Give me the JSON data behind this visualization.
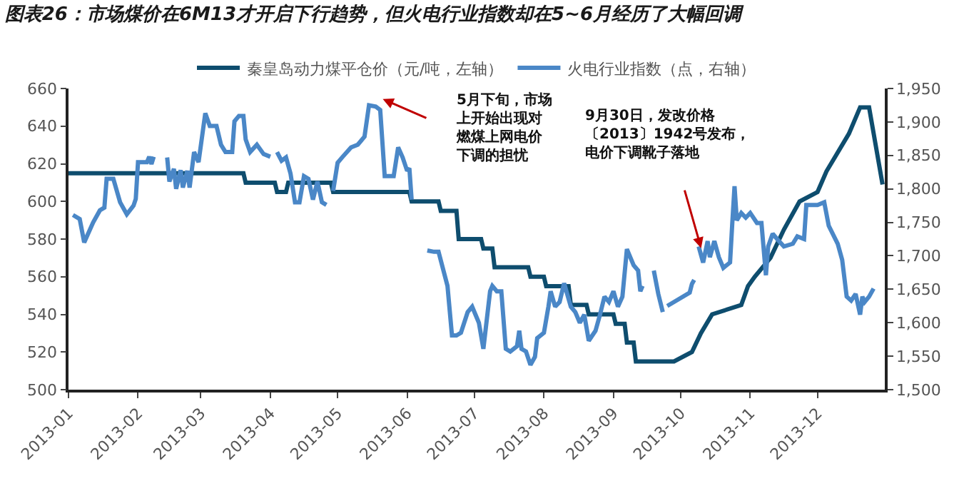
{
  "chart_data": {
    "type": "line",
    "title": "图表26：市场煤价在6M13才开启下行趋势，但火电行业指数却在5~6月经历了大幅回调",
    "legend": "top",
    "xlim": [
      "2013-01-01",
      "2013-12-31"
    ],
    "xticks": [
      {
        "value": "2013-01-01",
        "label": "2013-01"
      },
      {
        "value": "2013-02-01",
        "label": "2013-02"
      },
      {
        "value": "2013-03-01",
        "label": "2013-03"
      },
      {
        "value": "2013-04-01",
        "label": "2013-04"
      },
      {
        "value": "2013-05-01",
        "label": "2013-05"
      },
      {
        "value": "2013-06-01",
        "label": "2013-06"
      },
      {
        "value": "2013-07-01",
        "label": "2013-07"
      },
      {
        "value": "2013-08-01",
        "label": "2013-08"
      },
      {
        "value": "2013-09-01",
        "label": "2013-09"
      },
      {
        "value": "2013-10-01",
        "label": "2013-10"
      },
      {
        "value": "2013-11-01",
        "label": "2013-11"
      },
      {
        "value": "2013-12-01",
        "label": "2013-12"
      }
    ],
    "ylim": [
      500,
      660
    ],
    "yticks": [
      500,
      520,
      540,
      560,
      580,
      600,
      620,
      640,
      660
    ],
    "y2lim": [
      1500,
      1950
    ],
    "y2ticks": [
      {
        "value": 1500,
        "label": "1,500"
      },
      {
        "value": 1550,
        "label": "1,550"
      },
      {
        "value": 1600,
        "label": "1,600"
      },
      {
        "value": 1650,
        "label": "1,650"
      },
      {
        "value": 1700,
        "label": "1,700"
      },
      {
        "value": 1750,
        "label": "1,750"
      },
      {
        "value": 1800,
        "label": "1,800"
      },
      {
        "value": 1850,
        "label": "1,850"
      },
      {
        "value": 1900,
        "label": "1,900"
      },
      {
        "value": 1950,
        "label": "1,950"
      }
    ],
    "series": [
      {
        "name": "秦皇岛动力煤平仓价（元/吨，左轴）",
        "color": "#0e4d6e",
        "x": [
          "2013-01-01",
          "2013-03-20",
          "2013-03-21",
          "2013-04-03",
          "2013-04-04",
          "2013-04-08",
          "2013-04-09",
          "2013-04-28",
          "2013-04-29",
          "2013-06-02",
          "2013-06-03",
          "2013-06-15",
          "2013-06-16",
          "2013-06-23",
          "2013-06-24",
          "2013-07-04",
          "2013-07-05",
          "2013-07-09",
          "2013-07-10",
          "2013-07-25",
          "2013-07-26",
          "2013-08-01",
          "2013-08-02",
          "2013-08-12",
          "2013-08-13",
          "2013-08-20",
          "2013-08-21",
          "2013-09-01",
          "2013-09-02",
          "2013-09-06",
          "2013-09-07",
          "2013-09-10",
          "2013-09-11",
          "2013-09-28",
          "2013-10-06",
          "2013-10-10",
          "2013-10-15",
          "2013-10-28",
          "2013-10-31",
          "2013-11-03",
          "2013-11-10",
          "2013-11-16",
          "2013-11-23",
          "2013-12-01",
          "2013-12-05",
          "2013-12-09",
          "2013-12-15",
          "2013-12-20",
          "2013-12-24",
          "2013-12-30"
        ],
        "values": [
          615,
          615,
          610,
          610,
          605,
          605,
          610,
          610,
          605,
          605,
          600,
          600,
          595,
          595,
          580,
          580,
          575,
          575,
          565,
          565,
          560,
          560,
          555,
          555,
          545,
          545,
          540,
          540,
          535,
          535,
          525,
          525,
          515,
          515,
          520,
          530,
          540,
          545,
          555,
          560,
          570,
          585,
          600,
          605,
          616,
          624,
          636,
          650,
          650,
          609
        ]
      },
      {
        "name": "火电行业指数（点，右轴）",
        "color": "#4a87c7",
        "axis": "y2",
        "x": [
          "2013-01-03",
          "2013-01-06",
          "2013-01-08",
          "2013-01-12",
          "2013-01-15",
          "2013-01-17",
          "2013-01-18",
          "2013-01-21",
          "2013-01-24",
          "2013-01-27",
          "2013-01-30",
          "2013-01-31",
          "2013-02-01",
          "2013-02-05",
          "2013-02-06",
          "2013-02-07",
          "2013-02-08",
          "2013-02-11",
          "2013-02-14",
          "2013-02-15",
          "2013-02-17",
          "2013-02-18",
          "2013-02-20",
          "2013-02-21",
          "2013-02-23",
          "2013-02-24",
          "2013-02-26",
          "2013-02-28",
          "2013-03-03",
          "2013-03-05",
          "2013-03-08",
          "2013-03-10",
          "2013-03-12",
          "2013-03-15",
          "2013-03-16",
          "2013-03-18",
          "2013-03-20",
          "2013-03-21",
          "2013-03-23",
          "2013-03-26",
          "2013-03-29",
          "2013-04-01",
          "2013-04-02",
          "2013-04-04",
          "2013-04-06",
          "2013-04-08",
          "2013-04-10",
          "2013-04-12",
          "2013-04-14",
          "2013-04-16",
          "2013-04-18",
          "2013-04-20",
          "2013-04-22",
          "2013-04-24",
          "2013-04-26",
          "2013-04-28",
          "2013-04-29",
          "2013-05-01",
          "2013-05-03",
          "2013-05-07",
          "2013-05-10",
          "2013-05-13",
          "2013-05-15",
          "2013-05-18",
          "2013-05-20",
          "2013-05-22",
          "2013-05-26",
          "2013-05-28",
          "2013-05-30",
          "2013-06-01",
          "2013-06-02",
          "2013-06-03",
          "2013-06-06",
          "2013-06-10",
          "2013-06-13",
          "2013-06-15",
          "2013-06-19",
          "2013-06-21",
          "2013-06-23",
          "2013-06-25",
          "2013-06-28",
          "2013-06-30",
          "2013-07-02",
          "2013-07-03",
          "2013-07-05",
          "2013-07-08",
          "2013-07-09",
          "2013-07-11",
          "2013-07-13",
          "2013-07-15",
          "2013-07-17",
          "2013-07-20",
          "2013-07-21",
          "2013-07-22",
          "2013-07-24",
          "2013-07-26",
          "2013-07-28",
          "2013-07-29",
          "2013-08-01",
          "2013-08-03",
          "2013-08-04",
          "2013-08-06",
          "2013-08-08",
          "2013-08-10",
          "2013-08-13",
          "2013-08-15",
          "2013-08-17",
          "2013-08-19",
          "2013-08-21",
          "2013-08-24",
          "2013-08-26",
          "2013-08-28",
          "2013-08-30",
          "2013-09-01",
          "2013-09-03",
          "2013-09-05",
          "2013-09-07",
          "2013-09-08",
          "2013-09-10",
          "2013-09-12",
          "2013-09-13",
          "2013-09-14",
          "2013-09-16",
          "2013-09-19",
          "2013-09-21",
          "2013-09-23",
          "2013-09-24",
          "2013-09-25",
          "2013-10-05",
          "2013-10-06",
          "2013-10-07",
          "2013-10-08",
          "2013-10-09",
          "2013-10-11",
          "2013-10-13",
          "2013-10-14",
          "2013-10-16",
          "2013-10-18",
          "2013-10-20",
          "2013-10-23",
          "2013-10-24",
          "2013-10-25",
          "2013-10-26",
          "2013-10-28",
          "2013-10-30",
          "2013-11-01",
          "2013-11-04",
          "2013-11-06",
          "2013-11-08",
          "2013-11-09",
          "2013-11-11",
          "2013-11-13",
          "2013-11-16",
          "2013-11-20",
          "2013-11-22",
          "2013-11-25",
          "2013-11-26",
          "2013-12-01",
          "2013-12-04",
          "2013-12-06",
          "2013-12-10",
          "2013-12-12",
          "2013-12-14",
          "2013-12-16",
          "2013-12-18",
          "2013-12-20",
          "2013-12-21",
          "2013-12-22",
          "2013-12-24",
          "2013-12-26"
        ],
        "values": [
          1761,
          1755,
          1720,
          1750,
          1768,
          1772,
          1815,
          1815,
          1780,
          1762,
          1775,
          1785,
          1840,
          1840,
          1848,
          1837,
          1848,
          null,
          1847,
          1811,
          1830,
          1800,
          1828,
          1802,
          1827,
          1802,
          1855,
          1840,
          1913,
          1894,
          1894,
          1866,
          1855,
          1855,
          1901,
          1909,
          1909,
          1874,
          1855,
          1866,
          1852,
          1848,
          null,
          1855,
          1842,
          1847,
          1823,
          1780,
          1780,
          1819,
          1815,
          1784,
          1811,
          1780,
          1776,
          null,
          1797,
          1839,
          1847,
          1862,
          1866,
          1878,
          1925,
          1923,
          1918,
          1819,
          1819,
          1862,
          1847,
          1827,
          1831,
          1784,
          null,
          1708,
          1706,
          1706,
          1655,
          1581,
          1581,
          1585,
          1616,
          1624,
          1608,
          1600,
          1561,
          1647,
          1655,
          1647,
          1647,
          1561,
          1557,
          1565,
          1588,
          1561,
          1557,
          1537,
          1549,
          1577,
          1585,
          1624,
          1647,
          1624,
          1631,
          1659,
          1624,
          1616,
          1600,
          1612,
          1573,
          1588,
          1612,
          1639,
          1631,
          1647,
          1624,
          1639,
          1710,
          1702,
          1686,
          1678,
          1647,
          1655,
          null,
          1678,
          1643,
          1616,
          null,
          1625,
          1645,
          1658,
          1664,
          null,
          1714,
          1690,
          1722,
          1698,
          1722,
          1698,
          1682,
          1690,
          1749,
          1804,
          1753,
          1764,
          1757,
          1764,
          1749,
          1749,
          1671,
          1714,
          1733,
          1725,
          1714,
          1718,
          1729,
          1725,
          1776,
          1776,
          1780,
          1745,
          1718,
          1694,
          1639,
          1633,
          1643,
          1612,
          1639,
          1631,
          1639,
          1651
        ]
      }
    ],
    "annotations": [
      "5月下旬，市场上开始出现对燃煤上网电价下调的担忧",
      "9月30日，发改价格〔2013〕1942号发布，电价下调靴子落地"
    ]
  }
}
